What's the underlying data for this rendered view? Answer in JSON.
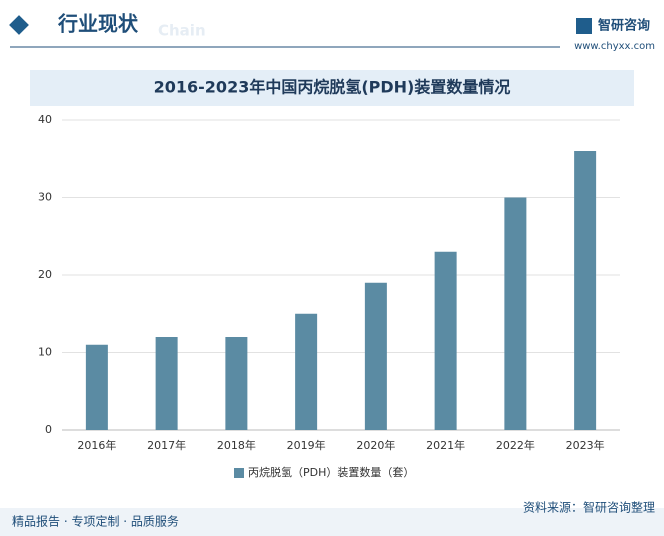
{
  "header": {
    "title": "行业现状",
    "subtitle": "Chain",
    "brand": "智研咨询",
    "url": "www.chyxx.com"
  },
  "chart_data": {
    "type": "bar",
    "title": "2016-2023年中国丙烷脱氢(PDH)装置数量情况",
    "categories": [
      "2016年",
      "2017年",
      "2018年",
      "2019年",
      "2020年",
      "2021年",
      "2022年",
      "2023年"
    ],
    "series": [
      {
        "name": "丙烷脱氢（PDH）装置数量（套）",
        "color": "#5b8ba3",
        "values": [
          11,
          12,
          12,
          15,
          19,
          23,
          30,
          36
        ]
      }
    ],
    "ylim": [
      0,
      40
    ],
    "yticks": [
      0,
      10,
      20,
      30,
      40
    ],
    "grid": true,
    "legend": "bottom"
  },
  "source": "资料来源：智研咨询整理",
  "footer": "精品报告 · 专项定制 · 品质服务"
}
